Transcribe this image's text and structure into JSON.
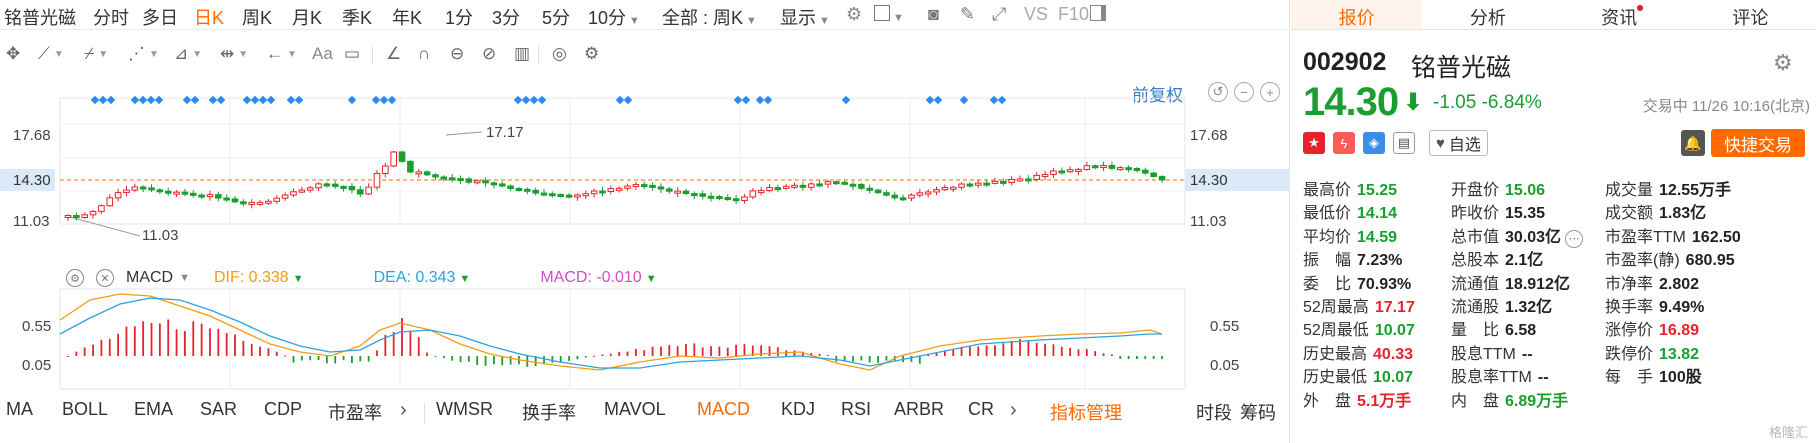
{
  "period_bar": {
    "stock_name": "铭普光磁",
    "periods": [
      "分时",
      "多日",
      "日K",
      "周K",
      "月K",
      "季K",
      "年K",
      "1分",
      "3分",
      "5分",
      "10分"
    ],
    "active": "日K",
    "range_select": "全部 : 周K",
    "display": "显示",
    "vs_label": "VS",
    "f10_label": "F10"
  },
  "draw_tools": {
    "text_tool": "Aa"
  },
  "kline": {
    "fuquan_label": "前复权",
    "y_labels": [
      "17.68",
      "14.30",
      "11.03"
    ],
    "high_annot": "17.17",
    "low_annot": "11.03",
    "current_price_line": 14.3,
    "colors": {
      "up": "#e8222c",
      "down": "#1a9f2f",
      "price_line": "#ff6a00",
      "ma_marker": "#2a8cf0"
    }
  },
  "macd": {
    "selected": "MACD",
    "dif_label": "DIF: 0.338",
    "dea_label": "DEA: 0.343",
    "macd_label": "MACD: -0.010",
    "y_labels": [
      "0.55",
      "0.05"
    ],
    "colors": {
      "dif": "#f39c12",
      "dea": "#2aa3e0",
      "macd": "#d04fc4"
    }
  },
  "indicators": {
    "items": [
      "MA",
      "BOLL",
      "EMA",
      "SAR",
      "CDP",
      "市盈率",
      "WMSR",
      "换手率",
      "MAVOL",
      "MACD",
      "KDJ",
      "RSI",
      "ARBR",
      "CR"
    ],
    "active": "MACD",
    "manage": "指标管理",
    "timeframe": "时段",
    "chip": "筹码"
  },
  "right": {
    "tabs": [
      "报价",
      "分析",
      "资讯",
      "评论"
    ],
    "active_tab": "报价",
    "code": "002902",
    "name": "铭普光磁",
    "price": "14.30",
    "change": "-1.05  -6.84%",
    "status": "交易中 11/26 10:16(北京)",
    "watchlist": "自选",
    "trade": "快捷交易",
    "stats": [
      [
        {
          "l": "最高价",
          "v": "15.25",
          "c": "dn"
        },
        {
          "l": "开盘价",
          "v": "15.06",
          "c": "dn"
        },
        {
          "l": "成交量",
          "v": "12.55万手",
          "c": "nt"
        }
      ],
      [
        {
          "l": "最低价",
          "v": "14.14",
          "c": "dn"
        },
        {
          "l": "昨收价",
          "v": "15.35",
          "c": "nt"
        },
        {
          "l": "成交额",
          "v": "1.83亿",
          "c": "nt"
        }
      ],
      [
        {
          "l": "平均价",
          "v": "14.59",
          "c": "dn"
        },
        {
          "l": "总市值",
          "v": "30.03亿",
          "c": "nt"
        },
        {
          "l": "市盈率TTM",
          "v": "162.50",
          "c": "nt"
        }
      ],
      [
        {
          "l": "振　幅",
          "v": "7.23%",
          "c": "nt"
        },
        {
          "l": "总股本",
          "v": "2.1亿",
          "c": "nt"
        },
        {
          "l": "市盈率(静)",
          "v": "680.95",
          "c": "nt"
        }
      ],
      [
        {
          "l": "委　比",
          "v": "70.93%",
          "c": "nt"
        },
        {
          "l": "流通值",
          "v": "18.912亿",
          "c": "nt"
        },
        {
          "l": "市净率",
          "v": "2.802",
          "c": "nt"
        }
      ],
      [
        {
          "l": "52周最高",
          "v": "17.17",
          "c": "up"
        },
        {
          "l": "流通股",
          "v": "1.32亿",
          "c": "nt"
        },
        {
          "l": "换手率",
          "v": "9.49%",
          "c": "nt"
        }
      ],
      [
        {
          "l": "52周最低",
          "v": "10.07",
          "c": "dn"
        },
        {
          "l": "量　比",
          "v": "6.58",
          "c": "nt"
        },
        {
          "l": "涨停价",
          "v": "16.89",
          "c": "up"
        }
      ],
      [
        {
          "l": "历史最高",
          "v": "40.33",
          "c": "up"
        },
        {
          "l": "股息TTM",
          "v": "--",
          "c": "nt"
        },
        {
          "l": "跌停价",
          "v": "13.82",
          "c": "dn"
        }
      ],
      [
        {
          "l": "历史最低",
          "v": "10.07",
          "c": "dn"
        },
        {
          "l": "股息率TTM",
          "v": "--",
          "c": "nt"
        },
        {
          "l": "每　手",
          "v": "100股",
          "c": "nt"
        }
      ],
      [
        {
          "l": "外　盘",
          "v": "5.1万手",
          "c": "up"
        },
        {
          "l": "内　盘",
          "v": "6.89万手",
          "c": "dn"
        }
      ]
    ],
    "watermark": "格隆汇"
  }
}
